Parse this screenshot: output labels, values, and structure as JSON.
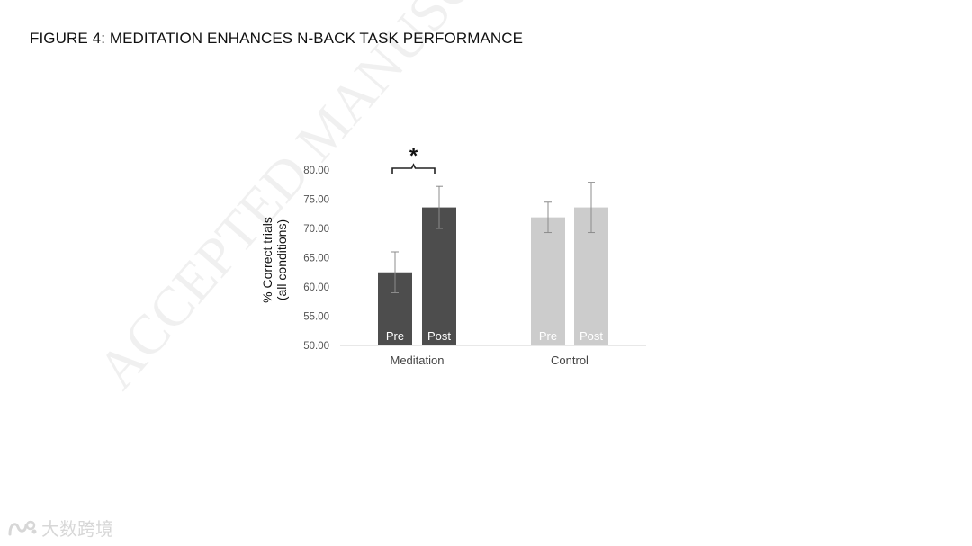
{
  "figure": {
    "title": "FIGURE 4:  MEDITATION ENHANCES N-BACK TASK PERFORMANCE",
    "watermark": "ACCEPTED MANUSCRIPT",
    "corner_logo_text": "大数跨境"
  },
  "chart_data": {
    "type": "bar",
    "title": "",
    "ylabel_lines": [
      "% Correct trials",
      "(all conditions)"
    ],
    "xlabel": "",
    "ylim": [
      50,
      80
    ],
    "yticks": [
      "50.00",
      "55.00",
      "60.00",
      "65.00",
      "70.00",
      "75.00",
      "80.00"
    ],
    "ytick_values": [
      50,
      55,
      60,
      65,
      70,
      75,
      80
    ],
    "grid": false,
    "categories": [
      "Meditation",
      "Control"
    ],
    "bars": [
      {
        "group": "Meditation",
        "label": "Pre",
        "value": 62.5,
        "error": 3.5,
        "color": "#4d4d4d"
      },
      {
        "group": "Meditation",
        "label": "Post",
        "value": 73.6,
        "error": 3.6,
        "color": "#4d4d4d"
      },
      {
        "group": "Control",
        "label": "Pre",
        "value": 71.9,
        "error": 2.6,
        "color": "#cccccc"
      },
      {
        "group": "Control",
        "label": "Post",
        "value": 73.6,
        "error": 4.3,
        "color": "#cccccc"
      }
    ],
    "significance": {
      "group": "Meditation",
      "symbol": "*"
    }
  }
}
